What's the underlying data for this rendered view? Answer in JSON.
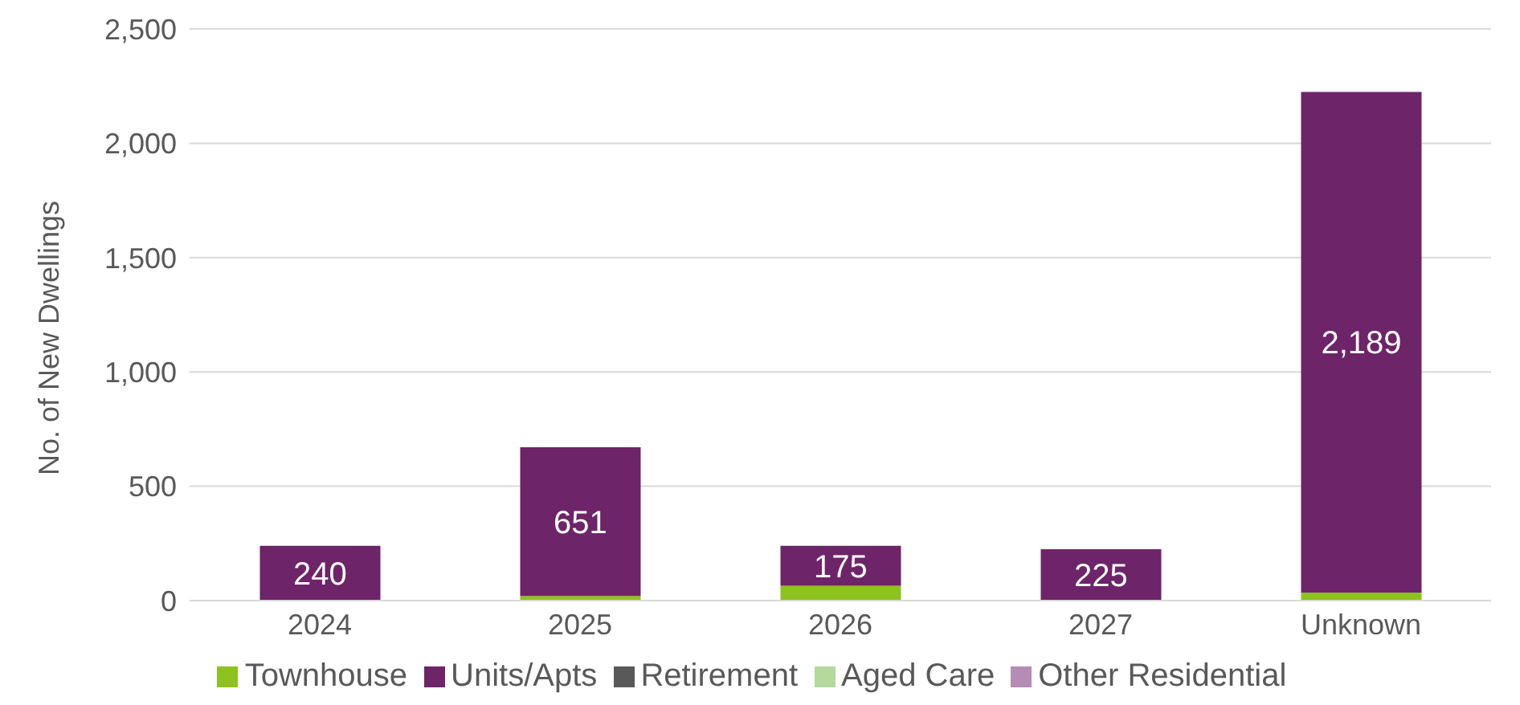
{
  "chart_data": {
    "type": "bar",
    "stacked": true,
    "ylabel": "No. of New Dwellings",
    "categories": [
      "2024",
      "2025",
      "2026",
      "2027",
      "Unknown"
    ],
    "ylim": [
      0,
      2500
    ],
    "yticks": [
      {
        "value": 0,
        "label": "0"
      },
      {
        "value": 500,
        "label": "500"
      },
      {
        "value": 1000,
        "label": "1,000"
      },
      {
        "value": 1500,
        "label": "1,500"
      },
      {
        "value": 2000,
        "label": "2,000"
      },
      {
        "value": 2500,
        "label": "2,500"
      }
    ],
    "grid": "y",
    "legend": "bottom",
    "series": [
      {
        "name": "Townhouse",
        "color": "#8dc21f",
        "values": [
          0,
          20,
          65,
          0,
          35
        ]
      },
      {
        "name": "Units/Apts",
        "color": "#6d2468",
        "values": [
          240,
          651,
          175,
          225,
          2189
        ],
        "value_labels": [
          "240",
          "651",
          "175",
          "225",
          "2,189"
        ]
      },
      {
        "name": "Retirement",
        "color": "#595959",
        "values": [
          0,
          0,
          0,
          0,
          0
        ]
      },
      {
        "name": "Aged Care",
        "color": "#b5d99c",
        "values": [
          0,
          0,
          0,
          0,
          0
        ]
      },
      {
        "name": "Other Residential",
        "color": "#b48cb5",
        "values": [
          0,
          0,
          0,
          0,
          0
        ]
      }
    ]
  }
}
